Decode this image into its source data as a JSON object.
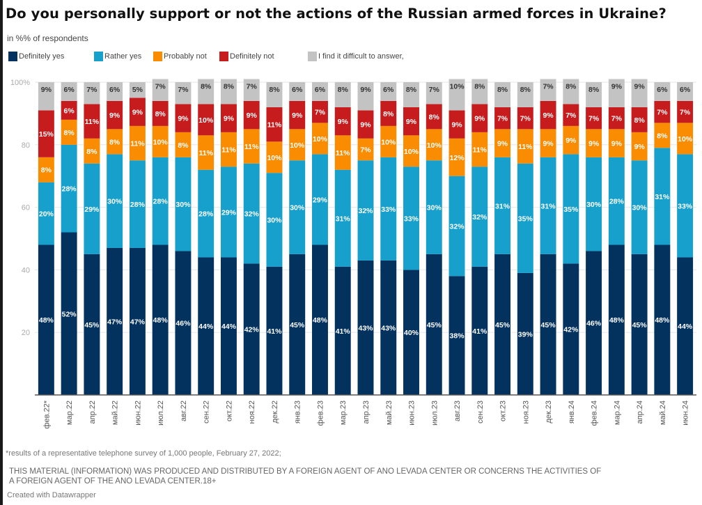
{
  "page": {
    "title": "Do you personally support or not the actions of the Russian armed forces in Ukraine?",
    "subtitle": "in %% of respondents",
    "footnote": "*results of a representative telephone survey of 1,000 people, February 27, 2022;",
    "disclaimer_line1": "THIS MATERIAL (INFORMATION) WAS PRODUCED AND DISTRIBUTED BY A FOREIGN AGENT OF ANO LEVADA CENTER OR CONCERNS THE ACTIVITIES OF",
    "disclaimer_line2": "A FOREIGN AGENT OF THE ANO LEVADA CENTER.18+",
    "credit": "Created with Datawrapper"
  },
  "legend": [
    {
      "label": "Definitely yes",
      "color": "#03325f"
    },
    {
      "label": "Rather yes",
      "color": "#18a0cc"
    },
    {
      "label": "Probably not",
      "color": "#f98c00"
    },
    {
      "label": "Definitely not",
      "color": "#c71c1e"
    },
    {
      "label": "I find it difficult to answer,",
      "color": "#c3c3c3"
    }
  ],
  "chart_data": {
    "type": "bar",
    "stacked": true,
    "orientation": "vertical",
    "title": "Do you personally support or not the actions of the Russian armed forces in Ukraine?",
    "subtitle": "in %% of respondents",
    "xlabel": "",
    "ylabel": "",
    "ylim": [
      0,
      100
    ],
    "yticks": [
      20,
      40,
      60,
      80,
      100
    ],
    "ytick_labels": [
      "20",
      "40",
      "60",
      "80",
      "100%"
    ],
    "grid": true,
    "legend_position": "top-left",
    "categories": [
      "фев.22*",
      "мар.22",
      "апр.22",
      "май.22",
      "июн.22",
      "июл.22",
      "авг.22",
      "сен.22",
      "окт.22",
      "ноя.22",
      "дек.22",
      "янв.23",
      "фев.23",
      "мар.23",
      "апр.23",
      "май.23",
      "июн.23",
      "июл.23",
      "авг.23",
      "сен.23",
      "окт.23",
      "ноя.23",
      "дек.23",
      "янв.24",
      "фев.24",
      "мар.24",
      "апр.24",
      "май.24",
      "июн.24"
    ],
    "series": [
      {
        "name": "Definitely yes",
        "color": "#03325f",
        "label_color": "#ffffff",
        "values": [
          48,
          52,
          45,
          47,
          47,
          48,
          46,
          44,
          44,
          42,
          41,
          45,
          48,
          41,
          43,
          43,
          40,
          45,
          38,
          41,
          45,
          39,
          45,
          42,
          46,
          48,
          45,
          48,
          44
        ]
      },
      {
        "name": "Rather yes",
        "color": "#18a0cc",
        "label_color": "#ffffff",
        "values": [
          20,
          28,
          29,
          30,
          28,
          28,
          30,
          28,
          29,
          32,
          30,
          30,
          29,
          31,
          32,
          33,
          33,
          30,
          32,
          32,
          31,
          35,
          31,
          35,
          30,
          28,
          30,
          31,
          33
        ]
      },
      {
        "name": "Probably not",
        "color": "#f98c00",
        "label_color": "#ffffff",
        "values": [
          8,
          8,
          8,
          8,
          11,
          10,
          8,
          11,
          11,
          11,
          10,
          10,
          10,
          11,
          7,
          10,
          10,
          10,
          12,
          11,
          9,
          11,
          9,
          9,
          9,
          9,
          9,
          8,
          10
        ]
      },
      {
        "name": "Definitely not",
        "color": "#c71c1e",
        "label_color": "#ffffff",
        "values": [
          15,
          6,
          11,
          9,
          9,
          8,
          9,
          10,
          9,
          9,
          11,
          9,
          7,
          9,
          9,
          8,
          9,
          8,
          9,
          9,
          7,
          7,
          9,
          7,
          7,
          7,
          8,
          7,
          7
        ]
      },
      {
        "name": "I find it difficult to answer",
        "color": "#c3c3c3",
        "label_color": "#333333",
        "values": [
          9,
          6,
          7,
          6,
          5,
          7,
          7,
          8,
          8,
          7,
          8,
          6,
          6,
          8,
          9,
          6,
          8,
          7,
          10,
          8,
          8,
          8,
          7,
          8,
          8,
          9,
          9,
          6,
          6
        ]
      }
    ],
    "value_suffix": "%"
  }
}
